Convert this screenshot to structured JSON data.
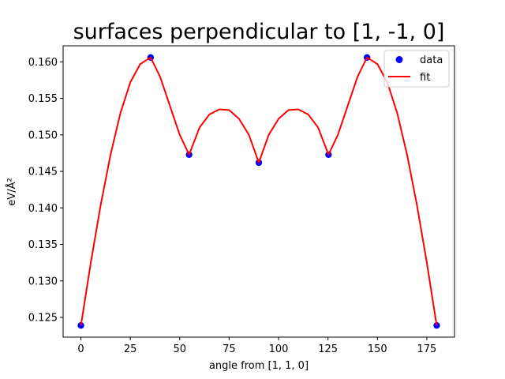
{
  "chart_data": {
    "type": "scatter",
    "title": "surfaces perpendicular to [1, -1, 0]",
    "xlabel": "angle from [1, 1, 0]",
    "ylabel": "eV/Å²",
    "xlim": [
      -9,
      189
    ],
    "ylim": [
      0.1223,
      0.1622
    ],
    "xticks": [
      0,
      25,
      50,
      75,
      100,
      125,
      150,
      175
    ],
    "yticks": [
      0.125,
      0.13,
      0.135,
      0.14,
      0.145,
      0.15,
      0.155,
      0.16
    ],
    "ytick_labels": [
      "0.125",
      "0.130",
      "0.135",
      "0.140",
      "0.145",
      "0.150",
      "0.155",
      "0.160"
    ],
    "grid": false,
    "legend_position": "top-right",
    "series": [
      {
        "name": "data",
        "kind": "markers",
        "color": "#0000ff",
        "x": [
          0,
          35.26,
          54.74,
          90,
          125.26,
          144.74,
          180
        ],
        "y": [
          0.1239,
          0.1606,
          0.1473,
          0.1462,
          0.1473,
          0.1606,
          0.1239
        ]
      },
      {
        "name": "fit",
        "kind": "line",
        "color": "#ff0000",
        "x": [
          0,
          5,
          10,
          15,
          20,
          25,
          30,
          35.26,
          40,
          45,
          50,
          54.74,
          60,
          65,
          70,
          75,
          80,
          85,
          90,
          95,
          100,
          105,
          110,
          115,
          120,
          125.26,
          130,
          135,
          140,
          144.74,
          150,
          155,
          160,
          165,
          170,
          175,
          180
        ],
        "y": [
          0.1239,
          0.1325,
          0.1404,
          0.1473,
          0.153,
          0.1572,
          0.1597,
          0.1606,
          0.158,
          0.154,
          0.15,
          0.1473,
          0.151,
          0.1528,
          0.1535,
          0.1534,
          0.1522,
          0.15,
          0.1462,
          0.15,
          0.1522,
          0.1534,
          0.1535,
          0.1528,
          0.151,
          0.1473,
          0.15,
          0.154,
          0.158,
          0.1606,
          0.1597,
          0.1572,
          0.153,
          0.1473,
          0.1404,
          0.1325,
          0.1239
        ]
      }
    ]
  }
}
